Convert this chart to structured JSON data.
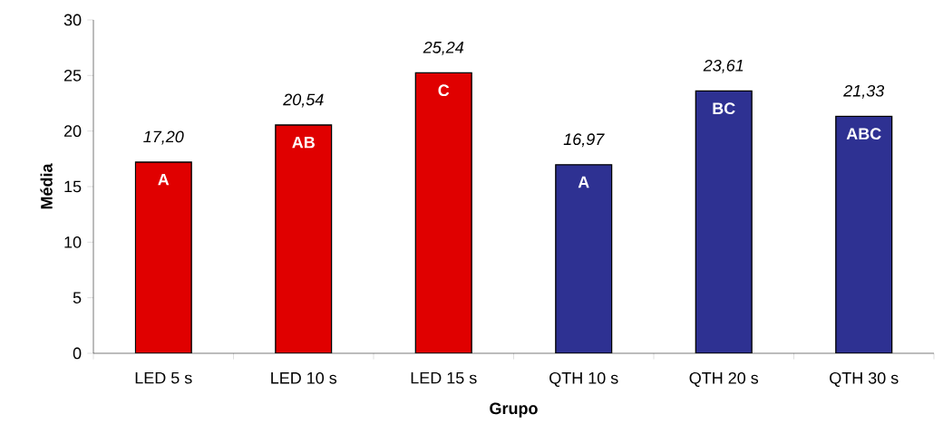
{
  "chart_data": {
    "type": "bar",
    "xlabel": "Grupo",
    "ylabel": "Média",
    "categories": [
      "LED 5 s",
      "LED 10 s",
      "LED 15 s",
      "QTH 10 s",
      "QTH 20 s",
      "QTH 30 s"
    ],
    "values": [
      17.2,
      20.54,
      25.24,
      16.97,
      23.61,
      21.33
    ],
    "value_labels": [
      "17,20",
      "20,54",
      "25,24",
      "16,97",
      "23,61",
      "21,33"
    ],
    "colors": [
      "#e00000",
      "#e00000",
      "#e00000",
      "#2e3192",
      "#2e3192",
      "#2e3192"
    ],
    "ylim": [
      0,
      30
    ],
    "yticks": [
      0,
      5,
      10,
      15,
      20,
      25,
      30
    ],
    "annotations": [
      {
        "text": "A",
        "x": "LED 5 s",
        "y": 17.2
      },
      {
        "text": "AB",
        "x": "LED 10 s",
        "y": 20.54
      },
      {
        "text": "C",
        "x": "LED 15 s",
        "y": 25.24
      },
      {
        "text": "A",
        "x": "QTH 10 s",
        "y": 16.97
      },
      {
        "text": "BC",
        "x": "QTH 20 s",
        "y": 23.61
      },
      {
        "text": "ABC",
        "x": "QTH 30 s",
        "y": 21.33
      }
    ]
  }
}
